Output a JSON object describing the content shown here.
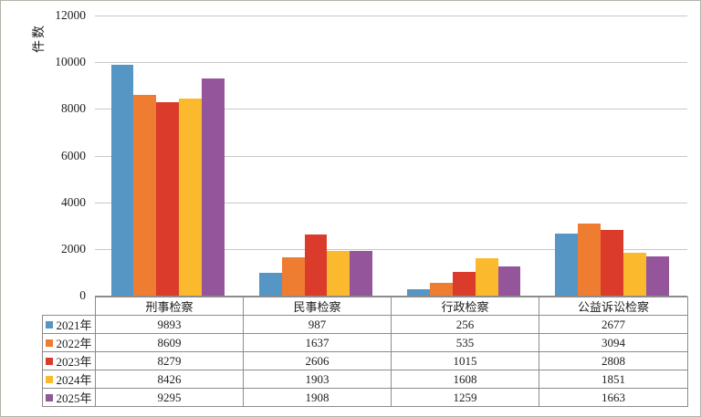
{
  "chart_data": {
    "type": "bar",
    "title": "",
    "ylabel": "件数",
    "xlabel": "",
    "ylim": [
      0,
      12000
    ],
    "yticks": [
      0,
      2000,
      4000,
      6000,
      8000,
      10000,
      12000
    ],
    "grid": true,
    "legend_position": "table-below",
    "categories": [
      "刑事检察",
      "民事检察",
      "行政检察",
      "公益诉讼检察"
    ],
    "series": [
      {
        "name": "2021年",
        "color": "#5596C5",
        "values": [
          9893,
          987,
          256,
          2677
        ]
      },
      {
        "name": "2022年",
        "color": "#EE7D31",
        "values": [
          8609,
          1637,
          535,
          3094
        ]
      },
      {
        "name": "2023年",
        "color": "#DA3B2B",
        "values": [
          8279,
          2606,
          1015,
          2808
        ]
      },
      {
        "name": "2024年",
        "color": "#FBB92D",
        "values": [
          8426,
          1903,
          1608,
          1851
        ]
      },
      {
        "name": "2025年",
        "color": "#94559B",
        "values": [
          9295,
          1908,
          1259,
          1663
        ]
      }
    ],
    "gridline_color": "#c8c8c3",
    "axis_text_color": "#1c1c1c"
  }
}
